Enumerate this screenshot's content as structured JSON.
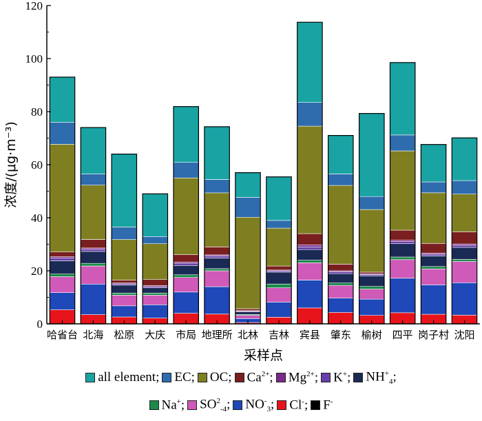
{
  "chart_data": {
    "type": "bar",
    "stacked": true,
    "xlabel": "采样点",
    "ylabel": "浓度/(μg·m⁻³)",
    "ylim": [
      0,
      120
    ],
    "yticks": [
      0,
      20,
      40,
      60,
      80,
      100,
      120
    ],
    "grid": false,
    "legend_position": "bottom",
    "categories": [
      "哈省台",
      "北海",
      "松原",
      "大庆",
      "市局",
      "地理所",
      "北林",
      "吉林",
      "宾县",
      "肇东",
      "榆树",
      "四平",
      "岗子村",
      "沈阳"
    ],
    "series": [
      {
        "name": "Cl-",
        "values": [
          5.3,
          3.5,
          2.6,
          2.2,
          4.0,
          3.7,
          0.5,
          2.5,
          6.0,
          4.3,
          3.2,
          4.2,
          3.6,
          3.3
        ]
      },
      {
        "name": "NO3-",
        "values": [
          6.5,
          11.5,
          4.2,
          5.0,
          8.0,
          10.3,
          1.5,
          5.7,
          10.5,
          5.4,
          6.1,
          13.0,
          11.1,
          12.2
        ]
      },
      {
        "name": "SO2-4",
        "values": [
          6.0,
          6.8,
          4.0,
          3.6,
          5.5,
          6.0,
          1.2,
          5.4,
          6.5,
          4.8,
          3.8,
          7.0,
          6.0,
          8.0
        ]
      },
      {
        "name": "Na+",
        "values": [
          1.0,
          1.0,
          0.8,
          0.8,
          1.0,
          0.8,
          0.3,
          1.4,
          1.0,
          0.9,
          1.0,
          1.0,
          0.9,
          0.8
        ]
      },
      {
        "name": "NH+4",
        "values": [
          5.0,
          4.5,
          3.0,
          2.0,
          3.5,
          4.0,
          1.0,
          4.5,
          4.0,
          3.5,
          4.0,
          5.0,
          4.0,
          4.5
        ]
      },
      {
        "name": "K+",
        "values": [
          1.0,
          0.8,
          0.5,
          0.5,
          0.8,
          0.8,
          0.3,
          0.5,
          1.0,
          0.7,
          0.5,
          0.8,
          0.6,
          0.8
        ]
      },
      {
        "name": "Mg2+",
        "values": [
          0.5,
          0.5,
          0.3,
          0.3,
          0.5,
          0.4,
          0.2,
          0.3,
          0.8,
          0.4,
          0.3,
          0.5,
          0.4,
          0.5
        ]
      },
      {
        "name": "Ca2+",
        "values": [
          1.8,
          3.2,
          1.1,
          2.3,
          2.8,
          3.0,
          0.7,
          1.5,
          4.2,
          2.5,
          0.6,
          3.8,
          3.7,
          4.6
        ]
      },
      {
        "name": "OC",
        "values": [
          40.6,
          20.5,
          15.3,
          13.5,
          28.9,
          20.4,
          34.5,
          14.3,
          40.5,
          29.7,
          23.6,
          29.9,
          19.1,
          14.2
        ]
      },
      {
        "name": "EC",
        "values": [
          8.3,
          4.2,
          4.7,
          2.7,
          5.9,
          5.0,
          7.5,
          2.9,
          9.0,
          4.3,
          4.9,
          6.0,
          4.1,
          5.1
        ]
      },
      {
        "name": "all element",
        "values": [
          17.0,
          17.5,
          27.5,
          16.1,
          21.0,
          19.9,
          9.3,
          16.4,
          30.2,
          14.5,
          31.3,
          27.3,
          14.1,
          16.1
        ]
      },
      {
        "name": "F-",
        "values": [
          0,
          0,
          0,
          0,
          0,
          0,
          0,
          0,
          0,
          0,
          0,
          0,
          0,
          0
        ]
      }
    ],
    "colors": {
      "all element": "#1aa3a3",
      "EC": "#2e6cae",
      "OC": "#7f7f22",
      "Ca2+": "#7a1f1f",
      "Mg2+": "#7b2a8a",
      "K+": "#6640a8",
      "NH+4": "#1a2a55",
      "Na+": "#1b8a4a",
      "SO2-4": "#d05ab8",
      "NO3-": "#1f48b8",
      "Cl-": "#e8141c",
      "F-": "#000000"
    }
  },
  "legend_rows": [
    [
      {
        "key": "all element",
        "label": "all element;"
      },
      {
        "key": "EC",
        "label": "EC;"
      },
      {
        "key": "OC",
        "label": "OC;"
      },
      {
        "key": "Ca2+",
        "label": "Ca",
        "sup": "2+",
        "tail": ";"
      },
      {
        "key": "Mg2+",
        "label": "Mg",
        "sup": "2+",
        "tail": ";"
      },
      {
        "key": "K+",
        "label": "K",
        "sup": "+",
        "tail": ";"
      },
      {
        "key": "NH+4",
        "label": "NH",
        "sup": "+",
        "sub": "4",
        "tail": ";"
      }
    ],
    [
      {
        "key": "Na+",
        "label": "Na",
        "sup": "+",
        "tail": ";"
      },
      {
        "key": "SO2-4",
        "label": "SO",
        "sup": "2",
        "sub": "-4",
        "tail": ";"
      },
      {
        "key": "NO3-",
        "label": "NO",
        "sup": "-",
        "sub": "3",
        "tail": ";"
      },
      {
        "key": "Cl-",
        "label": "Cl",
        "sup": "-",
        "tail": ";"
      },
      {
        "key": "F-",
        "label": "F",
        "sup": "-",
        "tail": ""
      }
    ]
  ]
}
